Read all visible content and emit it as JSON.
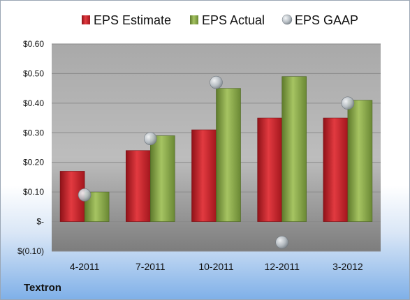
{
  "company": "Textron",
  "chart_data": {
    "type": "bar",
    "categories": [
      "4-2011",
      "7-2011",
      "10-2011",
      "12-2011",
      "3-2012"
    ],
    "series": [
      {
        "name": "EPS Estimate",
        "type": "bar",
        "color": "#c8262e",
        "values": [
          0.17,
          0.24,
          0.31,
          0.35,
          0.35
        ]
      },
      {
        "name": "EPS Actual",
        "type": "bar",
        "color": "#8aaa4a",
        "values": [
          0.1,
          0.29,
          0.45,
          0.49,
          0.41
        ]
      },
      {
        "name": "EPS GAAP",
        "type": "scatter",
        "color": "#bfc6cc",
        "values": [
          0.09,
          0.28,
          0.47,
          -0.07,
          0.4
        ]
      }
    ],
    "ylim": [
      -0.1,
      0.6
    ],
    "yticks": [
      {
        "value": 0.6,
        "label": "$0.60"
      },
      {
        "value": 0.5,
        "label": "$0.50"
      },
      {
        "value": 0.4,
        "label": "$0.40"
      },
      {
        "value": 0.3,
        "label": "$0.30"
      },
      {
        "value": 0.2,
        "label": "$0.20"
      },
      {
        "value": 0.1,
        "label": "$0.10"
      },
      {
        "value": 0.0,
        "label": "$-"
      },
      {
        "value": -0.1,
        "label": "$(0.10)"
      }
    ],
    "grid": true,
    "legend": "top"
  }
}
